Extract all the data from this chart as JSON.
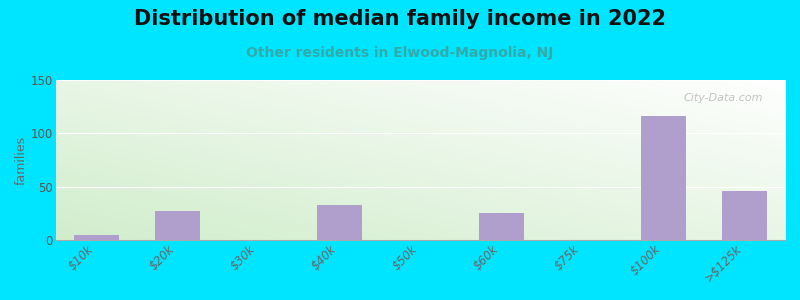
{
  "title": "Distribution of median family income in 2022",
  "subtitle": "Other residents in Elwood-Magnolia, NJ",
  "categories": [
    "$10k",
    "$20k",
    "$30k",
    "$40k",
    "$50k",
    "$60k",
    "$75k",
    "$100k",
    ">$125k"
  ],
  "values": [
    5,
    27,
    0,
    33,
    0,
    25,
    0,
    116,
    46
  ],
  "bar_color": "#b09fcc",
  "background_color": "#00e5ff",
  "plot_bg_color_tl": [
    0.82,
    0.93,
    0.8
  ],
  "plot_bg_color_br": [
    1.0,
    1.0,
    1.0
  ],
  "ylabel": "families",
  "ylim": [
    0,
    150
  ],
  "yticks": [
    0,
    50,
    100,
    150
  ],
  "title_fontsize": 15,
  "subtitle_fontsize": 10,
  "watermark": "City-Data.com",
  "bar_width": 0.55
}
